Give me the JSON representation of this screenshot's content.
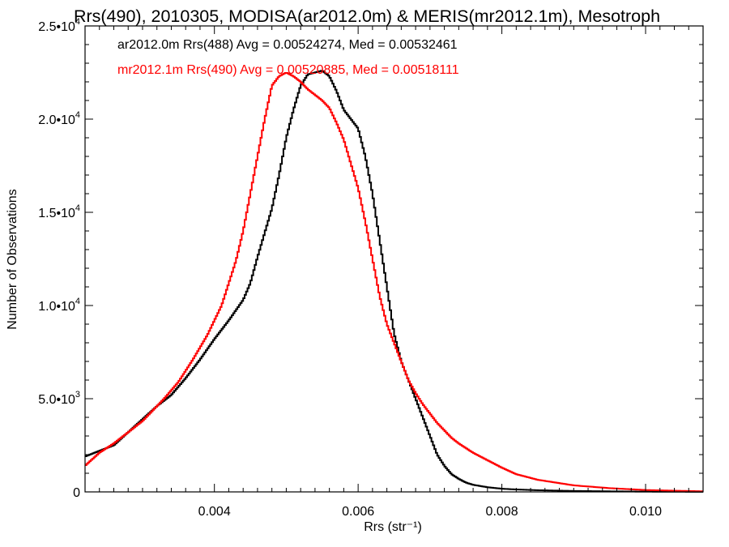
{
  "chart_data": {
    "type": "line",
    "title": "Rrs(490), 2010305, MODISA(ar2012.0m) & MERIS(mr2012.1m), Mesotroph",
    "xlabel": "Rrs (str⁻¹)",
    "ylabel": "Number of Observations",
    "xlim": [
      0.0022,
      0.0108
    ],
    "ylim": [
      0,
      25000
    ],
    "x_ticks": [
      0.004,
      0.006,
      0.008,
      0.01
    ],
    "x_tick_labels": [
      "0.004",
      "0.006",
      "0.008",
      "0.010"
    ],
    "y_ticks": [
      0,
      5000,
      10000,
      15000,
      20000,
      25000
    ],
    "y_tick_labels": [
      {
        "mant": "0",
        "exp": ""
      },
      {
        "mant": "5.0•10",
        "exp": "3"
      },
      {
        "mant": "1.0•10",
        "exp": "4"
      },
      {
        "mant": "1.5•10",
        "exp": "4"
      },
      {
        "mant": "2.0•10",
        "exp": "4"
      },
      {
        "mant": "2.5•10",
        "exp": "4"
      }
    ],
    "grid": false,
    "legend_position": "top-left",
    "series": [
      {
        "name": "ar2012.0m Rrs(488) Avg = 0.00524274, Med = 0.00532461",
        "color": "#000000",
        "x": [
          0.0022,
          0.0026,
          0.003,
          0.0032,
          0.0034,
          0.0036,
          0.0038,
          0.004,
          0.0042,
          0.0044,
          0.0045,
          0.0046,
          0.0048,
          0.0049,
          0.005,
          0.0051,
          0.0052,
          0.0053,
          0.0054,
          0.0055,
          0.0056,
          0.0057,
          0.0058,
          0.0059,
          0.006,
          0.0061,
          0.0062,
          0.0063,
          0.0064,
          0.0065,
          0.0066,
          0.0067,
          0.0068,
          0.0069,
          0.007,
          0.0071,
          0.0072,
          0.0073,
          0.0074,
          0.0075,
          0.0076,
          0.0078,
          0.008,
          0.0082,
          0.0085,
          0.009,
          0.0095,
          0.01,
          0.0108
        ],
        "y": [
          1900,
          2500,
          3900,
          4600,
          5200,
          6100,
          7100,
          8200,
          9200,
          10300,
          11200,
          12600,
          15200,
          17000,
          19000,
          20500,
          21800,
          22400,
          22500,
          22600,
          22300,
          21500,
          20500,
          20000,
          19500,
          18000,
          16000,
          13500,
          11000,
          8500,
          7000,
          6000,
          5000,
          4000,
          3000,
          2000,
          1400,
          950,
          700,
          500,
          380,
          250,
          170,
          130,
          90,
          50,
          30,
          15,
          5
        ]
      },
      {
        "name": "mr2012.1m Rrs(490) Avg = 0.00520885, Med = 0.00518111",
        "color": "#ff0000",
        "x": [
          0.0022,
          0.0024,
          0.0026,
          0.003,
          0.0033,
          0.0035,
          0.0037,
          0.0039,
          0.0041,
          0.0042,
          0.0043,
          0.0044,
          0.0045,
          0.0046,
          0.0047,
          0.0048,
          0.0049,
          0.005,
          0.0051,
          0.0052,
          0.0053,
          0.0054,
          0.0055,
          0.0056,
          0.0057,
          0.0058,
          0.0059,
          0.006,
          0.0061,
          0.0062,
          0.0063,
          0.0064,
          0.0065,
          0.0066,
          0.0067,
          0.0068,
          0.0069,
          0.007,
          0.0071,
          0.0072,
          0.0073,
          0.0074,
          0.0076,
          0.0078,
          0.008,
          0.0082,
          0.0085,
          0.009,
          0.0095,
          0.01,
          0.0108
        ],
        "y": [
          1400,
          2100,
          2600,
          3800,
          5000,
          5900,
          7100,
          8400,
          10000,
          11200,
          12400,
          14000,
          16000,
          18000,
          20000,
          21800,
          22300,
          22500,
          22300,
          22000,
          21600,
          21300,
          21000,
          20600,
          19800,
          18900,
          17600,
          16300,
          14500,
          12500,
          10500,
          9000,
          8000,
          7000,
          6000,
          5300,
          4700,
          4200,
          3700,
          3300,
          2900,
          2600,
          2100,
          1700,
          1300,
          950,
          650,
          350,
          200,
          100,
          30
        ]
      }
    ]
  }
}
